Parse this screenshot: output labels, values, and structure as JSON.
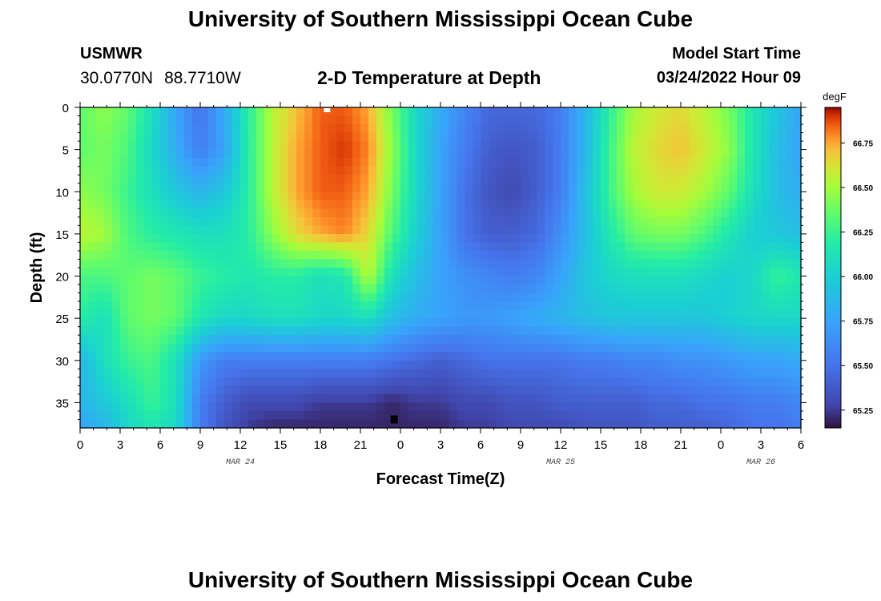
{
  "page": {
    "title": "University of Southern Mississippi Ocean Cube",
    "footer_title": "University of Southern Mississippi Ocean Cube",
    "station": "USMWR",
    "latitude": "30.0770N",
    "longitude": "88.7710W",
    "subtitle": "2-D Temperature at Depth",
    "model_start_label": "Model Start Time",
    "model_start_value": "03/24/2022 Hour 09"
  },
  "colors": {
    "background": "#ffffff",
    "text": "#000000",
    "frame": "#000000",
    "marker_surface": "#ffffff",
    "marker_bottom": "#000000"
  },
  "chart_data": {
    "type": "heatmap",
    "title": "2-D Temperature at Depth",
    "xlabel": "Forecast Time(Z)",
    "ylabel": "Depth (ft)",
    "x_hours": [
      0,
      3,
      6,
      9,
      12,
      15,
      18,
      21,
      24,
      27,
      30,
      33,
      36,
      39,
      42,
      45,
      48,
      51,
      54
    ],
    "xlim": [
      0,
      54
    ],
    "x_tick_labels": [
      "0",
      "3",
      "6",
      "9",
      "12",
      "15",
      "18",
      "21",
      "0",
      "3",
      "6",
      "9",
      "12",
      "15",
      "18",
      "21",
      "0",
      "3",
      "6"
    ],
    "date_labels": [
      {
        "text": "MAR 24",
        "hour": 12
      },
      {
        "text": "MAR 25",
        "hour": 36
      },
      {
        "text": "MAR 26",
        "hour": 51
      }
    ],
    "y_depth_ft": [
      0,
      5,
      10,
      15,
      20,
      25,
      30,
      35,
      38
    ],
    "ylim": [
      0,
      38
    ],
    "y_tick_labels": [
      "0",
      "5",
      "10",
      "15",
      "20",
      "25",
      "30",
      "35"
    ],
    "y_tick_values": [
      0,
      5,
      10,
      15,
      20,
      25,
      30,
      35
    ],
    "colorbar": {
      "units": "degF",
      "range": [
        65.15,
        66.95
      ],
      "ticks": [
        65.25,
        65.5,
        65.75,
        66.0,
        66.25,
        66.5,
        66.75
      ],
      "tick_labels": [
        "65.25",
        "65.50",
        "65.75",
        "66.00",
        "66.25",
        "66.50",
        "66.75"
      ]
    },
    "values_degF": [
      [
        66.35,
        66.45,
        66.35,
        66.1,
        65.75,
        65.5,
        65.8,
        66.2,
        66.55,
        66.7,
        66.85,
        66.85,
        66.75,
        66.4,
        66.05,
        65.8,
        65.6,
        65.45,
        65.45,
        65.45,
        65.55,
        65.85,
        66.2,
        66.5,
        66.6,
        66.65,
        66.55,
        66.4,
        66.15,
        65.95,
        65.75
      ],
      [
        66.35,
        66.4,
        66.3,
        66.05,
        65.8,
        65.55,
        65.75,
        66.2,
        66.55,
        66.75,
        66.85,
        66.9,
        66.8,
        66.45,
        66.05,
        65.75,
        65.55,
        65.4,
        65.35,
        65.4,
        65.55,
        65.85,
        66.25,
        66.55,
        66.65,
        66.7,
        66.6,
        66.45,
        66.15,
        65.9,
        65.75
      ],
      [
        66.45,
        66.4,
        66.25,
        66.1,
        65.95,
        65.85,
        65.95,
        66.2,
        66.55,
        66.75,
        66.85,
        66.85,
        66.75,
        66.4,
        66.05,
        65.75,
        65.5,
        65.35,
        65.3,
        65.4,
        65.55,
        65.9,
        66.25,
        66.5,
        66.6,
        66.6,
        66.5,
        66.35,
        66.1,
        65.9,
        65.8
      ],
      [
        66.55,
        66.5,
        66.3,
        66.2,
        66.15,
        66.1,
        66.1,
        66.2,
        66.45,
        66.65,
        66.75,
        66.8,
        66.65,
        66.3,
        66.0,
        65.75,
        65.5,
        65.4,
        65.4,
        65.45,
        65.65,
        65.9,
        66.15,
        66.35,
        66.4,
        66.4,
        66.3,
        66.15,
        66.0,
        65.95,
        65.9
      ],
      [
        66.3,
        66.3,
        66.35,
        66.4,
        66.35,
        66.25,
        66.2,
        66.15,
        66.2,
        66.2,
        66.1,
        66.15,
        66.55,
        66.1,
        65.9,
        65.75,
        65.65,
        65.6,
        65.55,
        65.6,
        65.75,
        65.95,
        66.05,
        66.1,
        66.1,
        66.1,
        66.05,
        66.0,
        66.05,
        66.25,
        66.15
      ],
      [
        66.2,
        66.1,
        66.35,
        66.4,
        66.35,
        66.15,
        66.05,
        66.05,
        66.1,
        66.1,
        66.05,
        66.05,
        66.1,
        65.9,
        65.8,
        65.75,
        65.7,
        65.7,
        65.75,
        65.8,
        65.85,
        65.9,
        65.95,
        65.95,
        65.95,
        65.95,
        65.95,
        66.0,
        66.05,
        66.05,
        66.05
      ],
      [
        65.85,
        66.1,
        66.25,
        66.3,
        66.1,
        65.7,
        65.55,
        65.55,
        65.55,
        65.55,
        65.55,
        65.55,
        65.55,
        65.5,
        65.45,
        65.4,
        65.45,
        65.5,
        65.5,
        65.5,
        65.5,
        65.55,
        65.55,
        65.6,
        65.6,
        65.65,
        65.65,
        65.7,
        65.75,
        65.75,
        65.8
      ],
      [
        65.85,
        65.95,
        66.1,
        66.25,
        66.1,
        65.55,
        65.4,
        65.3,
        65.3,
        65.3,
        65.25,
        65.25,
        65.25,
        65.2,
        65.25,
        65.25,
        65.3,
        65.3,
        65.35,
        65.35,
        65.4,
        65.4,
        65.4,
        65.4,
        65.45,
        65.45,
        65.5,
        65.5,
        65.55,
        65.55,
        65.6
      ],
      [
        65.75,
        65.85,
        66.05,
        66.15,
        66.05,
        65.55,
        65.35,
        65.25,
        65.2,
        65.2,
        65.2,
        65.2,
        65.2,
        65.2,
        65.2,
        65.2,
        65.25,
        65.25,
        65.3,
        65.3,
        65.3,
        65.35,
        65.35,
        65.35,
        65.4,
        65.4,
        65.4,
        65.45,
        65.5,
        65.5,
        65.55
      ]
    ],
    "grid": false,
    "markers": [
      {
        "name": "surface-marker",
        "hour": 18.5,
        "depth": 0
      },
      {
        "name": "bottom-marker",
        "hour": 23.5,
        "depth": 37
      }
    ]
  }
}
